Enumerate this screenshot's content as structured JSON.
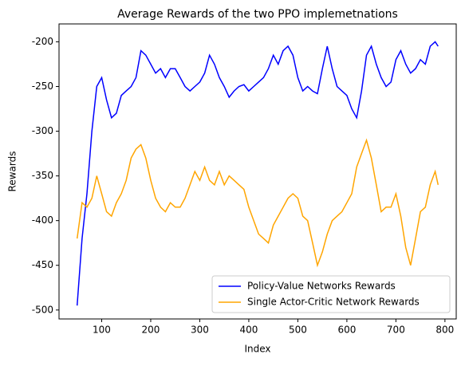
{
  "chart_data": {
    "type": "line",
    "title": "Average Rewards of the two PPO implemetnations",
    "xlabel": "Index",
    "ylabel": "Rewards",
    "x": [
      50,
      60,
      70,
      80,
      90,
      100,
      110,
      120,
      130,
      140,
      150,
      160,
      170,
      180,
      190,
      200,
      210,
      220,
      230,
      240,
      250,
      260,
      270,
      280,
      290,
      300,
      310,
      320,
      330,
      340,
      350,
      360,
      370,
      380,
      390,
      400,
      410,
      420,
      430,
      440,
      450,
      460,
      470,
      480,
      490,
      500,
      510,
      520,
      530,
      540,
      550,
      560,
      570,
      580,
      590,
      600,
      610,
      620,
      630,
      640,
      650,
      660,
      670,
      680,
      690,
      700,
      710,
      720,
      730,
      740,
      750,
      760,
      770,
      780,
      786
    ],
    "series": [
      {
        "name": "Policy-Value Networks Rewards",
        "color": "#0000ff",
        "values": [
          -495,
          -420,
          -370,
          -300,
          -250,
          -240,
          -265,
          -285,
          -280,
          -260,
          -255,
          -250,
          -240,
          -210,
          -215,
          -225,
          -235,
          -230,
          -240,
          -230,
          -230,
          -240,
          -250,
          -255,
          -250,
          -245,
          -235,
          -215,
          -225,
          -240,
          -250,
          -262,
          -255,
          -250,
          -248,
          -255,
          -250,
          -245,
          -240,
          -230,
          -215,
          -225,
          -210,
          -205,
          -215,
          -240,
          -255,
          -250,
          -255,
          -258,
          -230,
          -205,
          -230,
          -250,
          -255,
          -260,
          -275,
          -285,
          -255,
          -215,
          -205,
          -225,
          -240,
          -250,
          -245,
          -220,
          -210,
          -225,
          -235,
          -230,
          -220,
          -225,
          -205,
          -200,
          -205
        ]
      },
      {
        "name": "Single Actor-Critic Network Rewards",
        "color": "#ffa500",
        "values": [
          -420,
          -380,
          -385,
          -375,
          -350,
          -370,
          -390,
          -395,
          -380,
          -370,
          -355,
          -330,
          -320,
          -315,
          -330,
          -355,
          -375,
          -385,
          -390,
          -380,
          -385,
          -385,
          -375,
          -360,
          -345,
          -355,
          -340,
          -355,
          -360,
          -345,
          -360,
          -350,
          -355,
          -360,
          -365,
          -385,
          -400,
          -415,
          -420,
          -425,
          -405,
          -395,
          -385,
          -375,
          -370,
          -375,
          -395,
          -400,
          -425,
          -450,
          -435,
          -415,
          -400,
          -395,
          -390,
          -380,
          -370,
          -340,
          -325,
          -310,
          -330,
          -360,
          -390,
          -385,
          -385,
          -370,
          -395,
          -430,
          -450,
          -420,
          -390,
          -385,
          -360,
          -345,
          -360
        ]
      }
    ],
    "xlim": [
      13,
      823
    ],
    "ylim": [
      -510,
      -180
    ],
    "xticks": [
      100,
      200,
      300,
      400,
      500,
      600,
      700,
      800
    ],
    "yticks": [
      -500,
      -450,
      -400,
      -350,
      -300,
      -250,
      -200
    ],
    "legend": "lower right"
  }
}
